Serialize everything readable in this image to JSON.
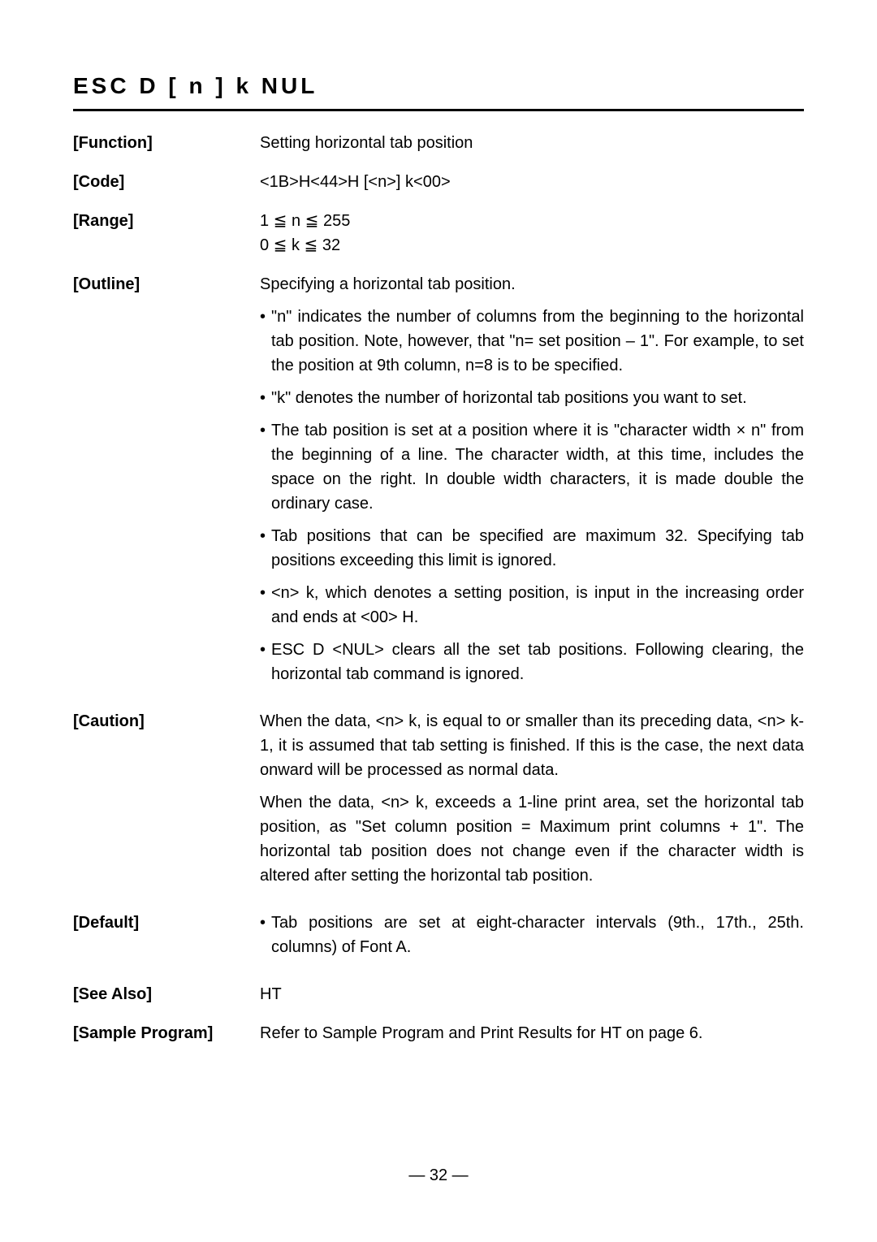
{
  "title": "ESC  D  [ n ]  k  NUL",
  "sections": {
    "function": {
      "label": "[Function]",
      "text": "Setting horizontal tab position"
    },
    "code": {
      "label": "[Code]",
      "text": "<1B>H<44>H [<n>] k<00>"
    },
    "range": {
      "label": "[Range]",
      "line1": "1 ≦ n ≦ 255",
      "line2": "0 ≦ k ≦ 32"
    },
    "outline": {
      "label": "[Outline]",
      "intro": "Specifying a horizontal tab position.",
      "bullets": [
        "\"n\" indicates the number of columns from the beginning to the horizontal tab position.  Note, however, that \"n= set position – 1\". For example, to set the position at 9th column, n=8 is to be specified.",
        "\"k\" denotes the number of horizontal tab positions you want to set.",
        "The tab position is set at a position where it is \"character width × n\" from the beginning of a line.  The character width, at this time, includes the space on the right.  In double width characters, it is made double the ordinary case.",
        "Tab positions that can be specified are maximum 32.  Specifying tab positions exceeding this limit is ignored.",
        "<n> k, which denotes a setting position, is input in the increasing order and ends at <00> H.",
        "ESC D <NUL> clears all the set tab positions.  Following clearing, the horizontal tab command is ignored."
      ]
    },
    "caution": {
      "label": "[Caution]",
      "para1": "When the data, <n> k, is equal to or smaller than its preceding data, <n> k-1, it is assumed that tab setting is finished.  If this is the case, the next data onward will be processed as normal data.",
      "para2": "When the data, <n> k, exceeds a 1-line print area, set the horizontal tab position, as \"Set column position = Maximum print columns + 1\". The horizontal tab position does not change even if the character width is altered after setting the horizontal tab position."
    },
    "default": {
      "label": "[Default]",
      "bullet": "Tab positions are set at eight-character intervals (9th., 17th., 25th. columns) of Font A."
    },
    "seealso": {
      "label": "[See Also]",
      "text": "HT"
    },
    "sample": {
      "label": "[Sample Program]",
      "text": "Refer to Sample Program and Print Results for HT on page 6."
    }
  },
  "page_number": "— 32 —"
}
